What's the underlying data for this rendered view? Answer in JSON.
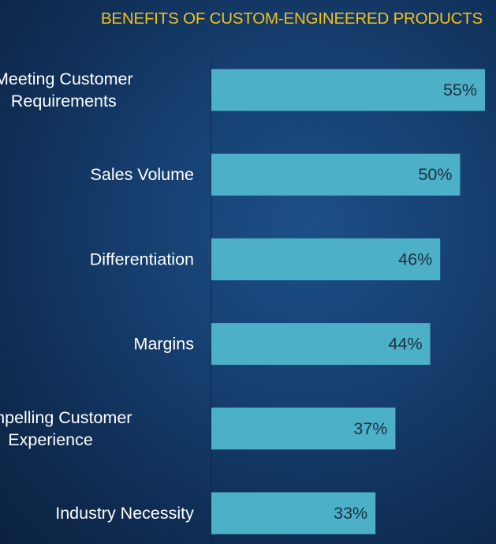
{
  "chart_data": {
    "type": "bar",
    "orientation": "horizontal",
    "title": "BENEFITS OF CUSTOM-ENGINEERED PRODUCTS",
    "categories": [
      [
        "Meeting Customer",
        "Requirements"
      ],
      [
        "Sales Volume"
      ],
      [
        "Differentiation"
      ],
      [
        "Margins"
      ],
      [
        "Compelling Customer",
        "Experience"
      ],
      [
        "Industry Necessity"
      ]
    ],
    "values": [
      55,
      50,
      46,
      44,
      37,
      33
    ],
    "value_labels": [
      "55%",
      "50%",
      "46%",
      "44%",
      "37%",
      "33%"
    ],
    "xlim": [
      0,
      55
    ],
    "grid": false,
    "legend": "none",
    "colors": {
      "bar": "#4bb0c8",
      "title": "#f2c21b",
      "category_text": "#ffffff",
      "value_text": "#1f2f3e"
    }
  }
}
